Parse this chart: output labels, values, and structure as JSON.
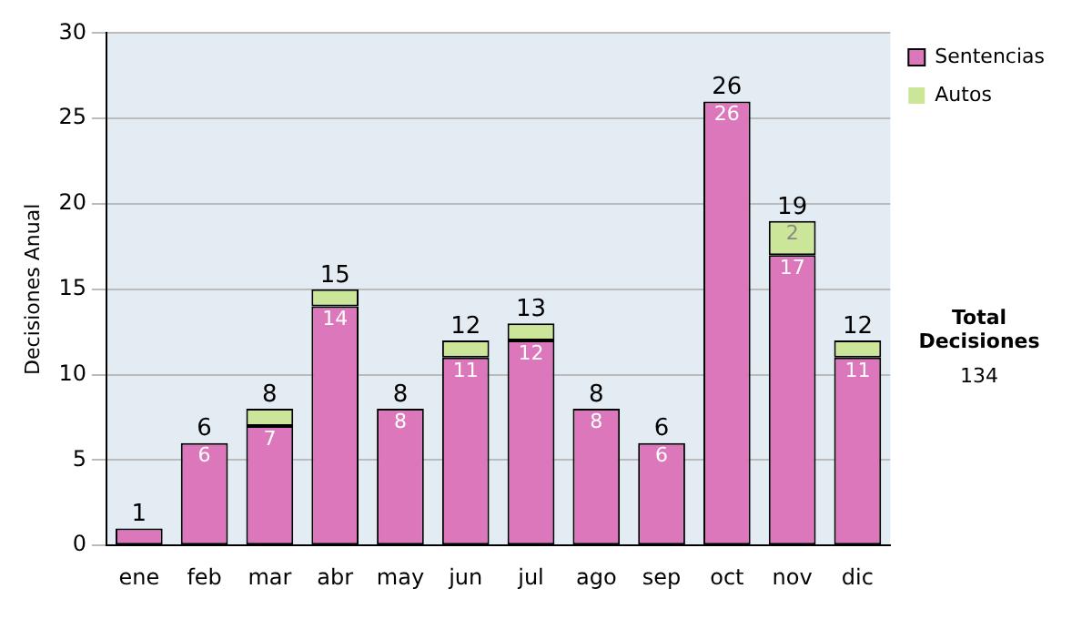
{
  "chart_data": {
    "type": "bar",
    "stacked": true,
    "ylabel": "Decisiones Anual",
    "categories": [
      "ene",
      "feb",
      "mar",
      "abr",
      "may",
      "jun",
      "jul",
      "ago",
      "sep",
      "oct",
      "nov",
      "dic"
    ],
    "series": [
      {
        "name": "Sentencias",
        "color": "#dd77bb",
        "values": [
          1,
          6,
          7,
          14,
          8,
          11,
          12,
          8,
          6,
          26,
          17,
          11
        ],
        "value_labels": [
          null,
          "6",
          "7",
          "14",
          "8",
          "11",
          "12",
          "8",
          "6",
          "26",
          "17",
          "11"
        ]
      },
      {
        "name": "Autos",
        "color": "#cce699",
        "values": [
          0,
          0,
          1,
          1,
          0,
          1,
          1,
          0,
          0,
          0,
          2,
          1
        ],
        "value_labels": [
          null,
          null,
          null,
          null,
          null,
          null,
          null,
          null,
          null,
          null,
          "2",
          null
        ]
      }
    ],
    "totals": [
      "1",
      "6",
      "8",
      "15",
      "8",
      "12",
      "13",
      "8",
      "6",
      "26",
      "19",
      "12"
    ],
    "ylim": [
      0,
      30
    ],
    "yticks": [
      0,
      5,
      10,
      15,
      20,
      25,
      30
    ],
    "grid": "y",
    "legend": "right",
    "annotations": [
      "Total Decisiones",
      "134"
    ]
  }
}
